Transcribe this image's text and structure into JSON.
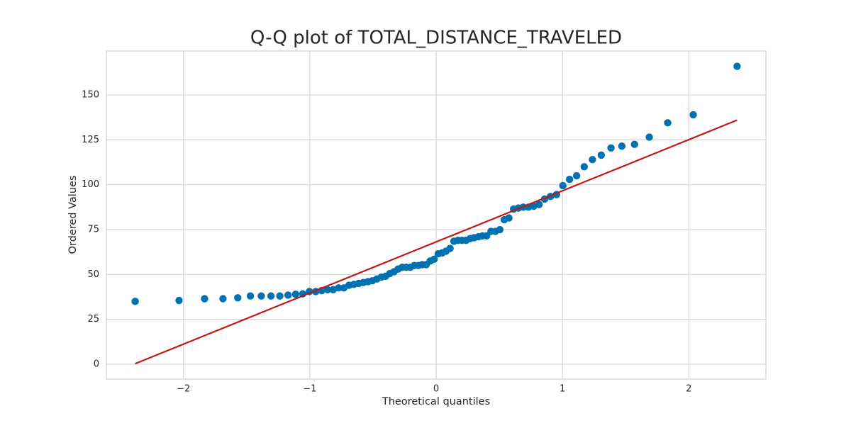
{
  "chart_data": {
    "type": "scatter",
    "title": "Q-Q plot of TOTAL_DISTANCE_TRAVELED",
    "xlabel": "Theoretical quantiles",
    "ylabel": "Ordered Values",
    "x": [
      -2.382,
      -2.035,
      -1.833,
      -1.687,
      -1.57,
      -1.47,
      -1.384,
      -1.307,
      -1.237,
      -1.172,
      -1.112,
      -1.056,
      -1.003,
      -0.953,
      -0.905,
      -0.859,
      -0.815,
      -0.772,
      -0.731,
      -0.69,
      -0.651,
      -0.613,
      -0.576,
      -0.539,
      -0.504,
      -0.469,
      -0.434,
      -0.4,
      -0.367,
      -0.334,
      -0.301,
      -0.269,
      -0.237,
      -0.205,
      -0.173,
      -0.141,
      -0.11,
      -0.078,
      -0.047,
      -0.016,
      0.016,
      0.047,
      0.078,
      0.11,
      0.141,
      0.173,
      0.205,
      0.237,
      0.269,
      0.301,
      0.334,
      0.367,
      0.4,
      0.434,
      0.469,
      0.504,
      0.539,
      0.576,
      0.613,
      0.651,
      0.69,
      0.731,
      0.772,
      0.815,
      0.859,
      0.905,
      0.953,
      1.003,
      1.056,
      1.112,
      1.172,
      1.237,
      1.307,
      1.384,
      1.47,
      1.57,
      1.687,
      1.833,
      2.035,
      2.382
    ],
    "values": [
      35,
      35.5,
      36.5,
      36.5,
      37,
      38,
      38,
      38,
      38,
      38.5,
      39,
      39.2,
      40.5,
      40.5,
      41,
      41.5,
      41.5,
      42.5,
      42.5,
      44,
      44.5,
      45,
      45.5,
      46,
      46.5,
      47.5,
      48.5,
      49,
      50.5,
      51.5,
      53,
      54,
      54,
      54,
      55,
      55,
      55.5,
      55.5,
      57.5,
      58.5,
      61.5,
      62,
      63,
      64.5,
      68.5,
      69,
      69,
      69,
      70,
      70.5,
      71,
      71.5,
      71.5,
      74,
      74,
      75,
      80.5,
      81.5,
      86.5,
      87,
      87.5,
      87.5,
      88,
      89,
      92,
      93.5,
      94.5,
      99.5,
      103,
      105,
      110,
      114,
      116.5,
      120.5,
      121.5,
      122.5,
      126.5,
      134.5,
      139,
      166
    ],
    "color": "#0072b2",
    "line": {
      "x": [
        -2.382,
        2.382
      ],
      "values": [
        0.3,
        136
      ],
      "color": "#c01a14"
    },
    "xlim": [
      -2.61,
      2.61
    ],
    "ylim": [
      -8.3,
      174.5
    ],
    "xticks": [
      {
        "value": -2,
        "label": "−2"
      },
      {
        "value": -1,
        "label": "−1"
      },
      0,
      1,
      2
    ],
    "yticks": [
      0,
      25,
      50,
      75,
      100,
      125,
      150
    ],
    "grid": true
  }
}
